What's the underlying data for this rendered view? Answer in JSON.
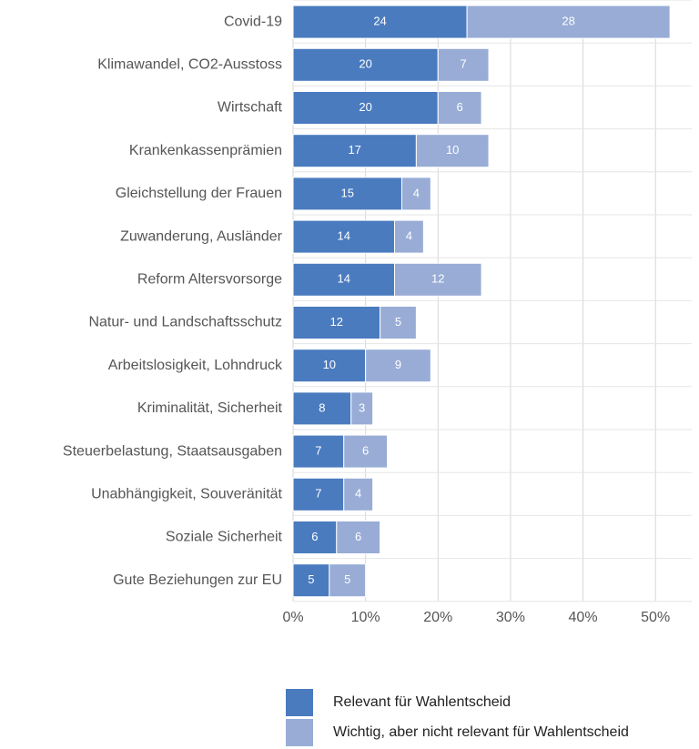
{
  "chart_data": {
    "type": "stacked_barh",
    "categories": [
      "Covid-19",
      "Klimawandel, CO2-Ausstoss",
      "Wirtschaft",
      "Krankenkassenprämien",
      "Gleichstellung der Frauen",
      "Zuwanderung, Ausländer",
      "Reform Altersvorsorge",
      "Natur- und Landschaftsschutz",
      "Arbeitslosigkeit, Lohndruck",
      "Kriminalität, Sicherheit",
      "Steuerbelastung, Staatsausgaben",
      "Unabhängigkeit, Souveränität",
      "Soziale Sicherheit",
      "Gute Beziehungen zur EU"
    ],
    "series": [
      {
        "name": "Relevant für Wahlentscheid",
        "color": "#4a7bbf",
        "values": [
          24,
          20,
          20,
          17,
          15,
          14,
          14,
          12,
          10,
          8,
          7,
          7,
          6,
          5
        ]
      },
      {
        "name": "Wichtig, aber nicht relevant für Wahlentscheid",
        "color": "#98acd6",
        "values": [
          28,
          7,
          6,
          10,
          4,
          4,
          12,
          5,
          9,
          3,
          6,
          4,
          6,
          5
        ]
      }
    ],
    "xlim": [
      0,
      55
    ],
    "xticks": [
      {
        "value": 0,
        "label": "0%"
      },
      {
        "value": 10,
        "label": "10%"
      },
      {
        "value": 20,
        "label": "20%"
      },
      {
        "value": 30,
        "label": "30%"
      },
      {
        "value": 40,
        "label": "40%"
      },
      {
        "value": 50,
        "label": "50%"
      }
    ],
    "grid": true,
    "legend": "bottom"
  }
}
